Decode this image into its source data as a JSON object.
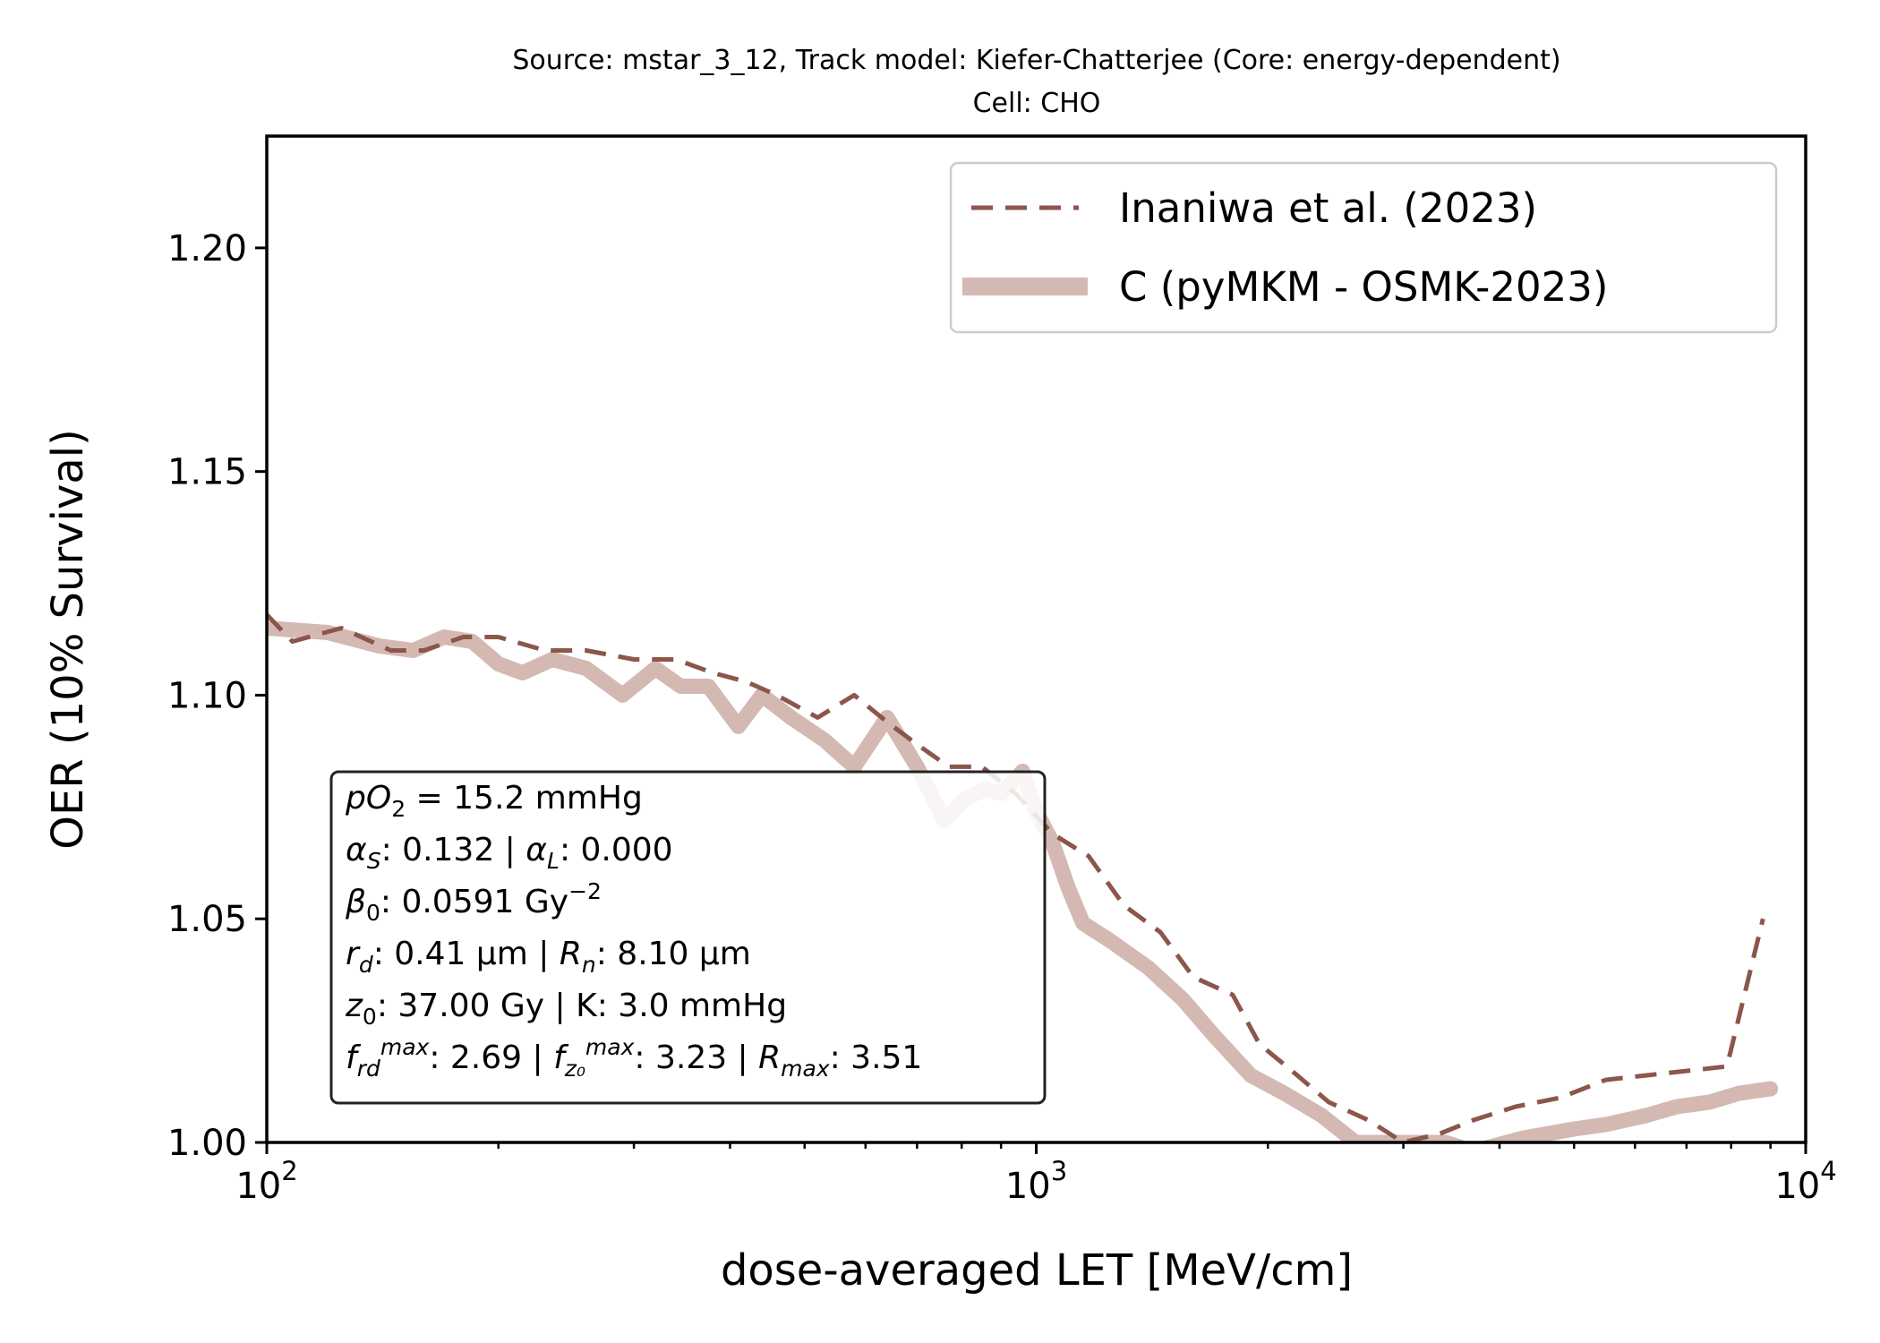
{
  "chart_data": {
    "type": "line",
    "title": "Source: mstar_3_12, Track model: Kiefer-Chatterjee (Core: energy-dependent)",
    "subtitle": "Cell: CHO",
    "xlabel": "dose-averaged LET [MeV/cm]",
    "ylabel": "OER (10% Survival)",
    "xscale": "log",
    "xlim": [
      100,
      10000
    ],
    "ylim": [
      1.0,
      1.225
    ],
    "grid": false,
    "legend_position": "top-right",
    "x_ticks": [
      {
        "value": 100,
        "base": "10",
        "exp": "2"
      },
      {
        "value": 1000,
        "base": "10",
        "exp": "3"
      },
      {
        "value": 10000,
        "base": "10",
        "exp": "4"
      }
    ],
    "y_ticks": [
      {
        "value": 1.0,
        "label": "1.00"
      },
      {
        "value": 1.05,
        "label": "1.05"
      },
      {
        "value": 1.1,
        "label": "1.10"
      },
      {
        "value": 1.15,
        "label": "1.15"
      },
      {
        "value": 1.2,
        "label": "1.20"
      }
    ],
    "series": [
      {
        "name": "Inaniwa et al. (2023)",
        "style": "dashed",
        "color": "#8c564b",
        "x": [
          100,
          108,
          125,
          145,
          160,
          180,
          200,
          230,
          260,
          300,
          340,
          380,
          420,
          460,
          520,
          580,
          640,
          700,
          770,
          850,
          940,
          1050,
          1170,
          1300,
          1450,
          1600,
          1800,
          1950,
          2150,
          2400,
          2700,
          3000,
          3350,
          3700,
          4200,
          4800,
          5500,
          6200,
          7000,
          7900,
          8800
        ],
        "y": [
          1.118,
          1.112,
          1.115,
          1.11,
          1.11,
          1.113,
          1.113,
          1.11,
          1.11,
          1.108,
          1.108,
          1.105,
          1.103,
          1.1,
          1.095,
          1.1,
          1.094,
          1.089,
          1.084,
          1.084,
          1.078,
          1.069,
          1.064,
          1.053,
          1.047,
          1.037,
          1.033,
          1.022,
          1.016,
          1.009,
          1.005,
          1.0,
          1.002,
          1.005,
          1.008,
          1.01,
          1.014,
          1.015,
          1.016,
          1.017,
          1.05
        ]
      },
      {
        "name": "C (pyMKM - OSMK-2023)",
        "style": "solid-thick",
        "color": "#d4b9b2",
        "x": [
          100,
          120,
          140,
          155,
          170,
          185,
          200,
          215,
          235,
          260,
          290,
          320,
          345,
          375,
          410,
          440,
          480,
          530,
          580,
          640,
          700,
          760,
          810,
          860,
          900,
          960,
          1000,
          1050,
          1100,
          1150,
          1250,
          1400,
          1550,
          1700,
          1900,
          2100,
          2350,
          2600,
          3000,
          3400,
          3700,
          4300,
          5000,
          5500,
          6200,
          6800,
          7500,
          8200,
          9000
        ],
        "y": [
          1.115,
          1.114,
          1.111,
          1.11,
          1.113,
          1.112,
          1.107,
          1.105,
          1.108,
          1.106,
          1.1,
          1.106,
          1.102,
          1.102,
          1.093,
          1.1,
          1.095,
          1.09,
          1.084,
          1.095,
          1.084,
          1.072,
          1.077,
          1.079,
          1.078,
          1.083,
          1.074,
          1.067,
          1.057,
          1.049,
          1.045,
          1.039,
          1.032,
          1.024,
          1.015,
          1.011,
          1.006,
          1.0,
          1.0,
          1.0,
          0.998,
          1.001,
          1.003,
          1.004,
          1.006,
          1.008,
          1.009,
          1.011,
          1.012
        ]
      }
    ],
    "info_box": [
      {
        "parts": [
          {
            "t": "pO",
            "i": true
          },
          {
            "t": "2",
            "sub": true
          },
          {
            "t": " = 15.2 mmHg"
          }
        ]
      },
      {
        "parts": [
          {
            "t": "α",
            "i": true
          },
          {
            "t": "S",
            "sub": true,
            "i": true
          },
          {
            "t": ": 0.132 | "
          },
          {
            "t": "α",
            "i": true
          },
          {
            "t": "L",
            "sub": true,
            "i": true
          },
          {
            "t": ": 0.000"
          }
        ]
      },
      {
        "parts": [
          {
            "t": "β",
            "i": true
          },
          {
            "t": "0",
            "sub": true
          },
          {
            "t": ": 0.0591 Gy"
          },
          {
            "t": "−2",
            "sup": true
          }
        ]
      },
      {
        "parts": [
          {
            "t": "r",
            "i": true
          },
          {
            "t": "d",
            "sub": true,
            "i": true
          },
          {
            "t": ": 0.41 μm | "
          },
          {
            "t": "R",
            "i": true
          },
          {
            "t": "n",
            "sub": true,
            "i": true
          },
          {
            "t": ": 8.10 μm"
          }
        ]
      },
      {
        "parts": [
          {
            "t": "z",
            "i": true
          },
          {
            "t": "0",
            "sub": true
          },
          {
            "t": ": 37.00 Gy | K: 3.0 mmHg"
          }
        ]
      },
      {
        "parts": [
          {
            "t": "f",
            "i": true
          },
          {
            "t": "rd",
            "sub": true,
            "i": true
          },
          {
            "t": "max",
            "sup": true,
            "i": true
          },
          {
            "t": ": 2.69 | "
          },
          {
            "t": "f",
            "i": true
          },
          {
            "t": "z₀",
            "sub": true,
            "i": true
          },
          {
            "t": "max",
            "sup": true,
            "i": true
          },
          {
            "t": ": 3.23 | "
          },
          {
            "t": "R",
            "i": true
          },
          {
            "t": "max",
            "sub": true,
            "i": true
          },
          {
            "t": ": 3.51"
          }
        ]
      }
    ]
  }
}
